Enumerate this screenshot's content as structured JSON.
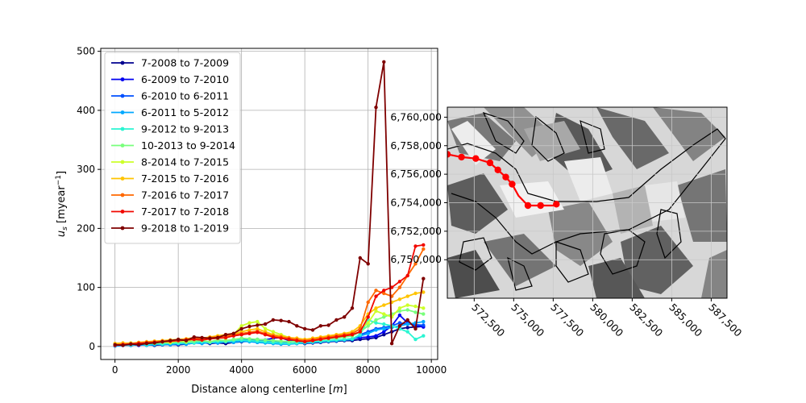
{
  "chart_data": [
    {
      "type": "line",
      "title": "",
      "xlabel": "Distance along centerline",
      "xlabel_unit": "m",
      "ylabel_symbol": "u",
      "ylabel_subscript": "s",
      "ylabel_unit": "myear",
      "ylabel_exp": "−1",
      "xlim": [
        -450,
        10200
      ],
      "ylim": [
        -22,
        505
      ],
      "xticks": [
        "0",
        "2000",
        "4000",
        "6000",
        "8000",
        "10000"
      ],
      "xtick_values": [
        0,
        2000,
        4000,
        6000,
        8000,
        10000
      ],
      "yticks": [
        "0",
        "100",
        "200",
        "300",
        "400",
        "500"
      ],
      "ytick_values": [
        0,
        100,
        200,
        300,
        400,
        500
      ],
      "grid": true,
      "legend_position": "upper-left",
      "series": [
        {
          "name": "7-2008 to 7-2009",
          "color": "#00008f",
          "x": [
            0,
            250,
            500,
            750,
            1000,
            1250,
            1500,
            1750,
            2000,
            2250,
            2500,
            2750,
            3000,
            3250,
            3500,
            3750,
            4000,
            4250,
            4500,
            4750,
            5000,
            5250,
            5500,
            5750,
            6000,
            6250,
            6500,
            6750,
            7000,
            7250,
            7500,
            7750,
            8000,
            8250,
            8500,
            8750,
            9000,
            9250,
            9500,
            9750
          ],
          "y": [
            2,
            3,
            2,
            3,
            3,
            2,
            3,
            4,
            3,
            4,
            6,
            7,
            5,
            6,
            5,
            7,
            8,
            9,
            7,
            8,
            7,
            6,
            5,
            6,
            5,
            6,
            7,
            8,
            9,
            10,
            10,
            12,
            13,
            15,
            20,
            25,
            30,
            32,
            33,
            34
          ]
        },
        {
          "name": "6-2009 to 7-2010",
          "color": "#0000f0",
          "x": [
            0,
            250,
            500,
            750,
            1000,
            1250,
            1500,
            1750,
            2000,
            2250,
            2500,
            2750,
            3000,
            3250,
            3500,
            3750,
            4000,
            4250,
            4500,
            4750,
            5000,
            5250,
            5500,
            5750,
            6000,
            6250,
            6500,
            6750,
            7000,
            7250,
            7500,
            7750,
            8000,
            8250,
            8500,
            8750,
            9000,
            9250,
            9500,
            9750
          ],
          "y": [
            1,
            2,
            3,
            2,
            3,
            3,
            4,
            3,
            4,
            5,
            8,
            6,
            7,
            6,
            8,
            9,
            11,
            10,
            12,
            11,
            14,
            15,
            10,
            8,
            6,
            7,
            8,
            9,
            10,
            12,
            13,
            15,
            16,
            18,
            25,
            35,
            53,
            40,
            36,
            33
          ]
        },
        {
          "name": "6-2010 to 6-2011",
          "color": "#0050ff",
          "x": [
            0,
            250,
            500,
            750,
            1000,
            1250,
            1500,
            1750,
            2000,
            2250,
            2500,
            2750,
            3000,
            3250,
            3500,
            3750,
            4000,
            4250,
            4500,
            4750,
            5000,
            5250,
            5500,
            5750,
            6000,
            6250,
            6500,
            6750,
            7000,
            7250,
            7500,
            7750,
            8000,
            8250,
            8500,
            8750,
            9000,
            9250,
            9500,
            9750
          ],
          "y": [
            2,
            3,
            2,
            4,
            3,
            4,
            3,
            5,
            4,
            6,
            7,
            8,
            6,
            9,
            8,
            10,
            12,
            11,
            10,
            9,
            8,
            7,
            6,
            5,
            6,
            7,
            8,
            9,
            10,
            11,
            12,
            20,
            25,
            30,
            32,
            35,
            40,
            38,
            37,
            36
          ]
        },
        {
          "name": "6-2011 to 5-2012",
          "color": "#00a8ff",
          "x": [
            0,
            250,
            500,
            750,
            1000,
            1250,
            1500,
            1750,
            2000,
            2250,
            2500,
            2750,
            3000,
            3250,
            3500,
            3750,
            4000,
            4250,
            4500,
            4750,
            5000,
            5250,
            5500,
            5750,
            6000,
            6250,
            6500,
            6750,
            7000,
            7250,
            7500,
            7750,
            8000,
            8250,
            8500,
            8750,
            9000,
            9250,
            9500,
            9750
          ],
          "y": [
            1,
            2,
            2,
            3,
            2,
            3,
            4,
            3,
            5,
            4,
            6,
            5,
            7,
            6,
            8,
            7,
            9,
            8,
            7,
            6,
            5,
            4,
            4,
            5,
            6,
            7,
            8,
            9,
            10,
            11,
            12,
            18,
            22,
            28,
            30,
            32,
            35,
            38,
            40,
            42
          ]
        },
        {
          "name": "9-2012 to 9-2013",
          "color": "#2af5d2",
          "x": [
            0,
            250,
            500,
            750,
            1000,
            1250,
            1500,
            1750,
            2000,
            2250,
            2500,
            2750,
            3000,
            3250,
            3500,
            3750,
            4000,
            4250,
            4500,
            4750,
            5000,
            5250,
            5500,
            5750,
            6000,
            6250,
            6500,
            6750,
            7000,
            7250,
            7500,
            7750,
            8000,
            8250,
            8500,
            8750,
            9000,
            9250,
            9500,
            9750
          ],
          "y": [
            2,
            3,
            3,
            4,
            3,
            5,
            4,
            6,
            5,
            7,
            6,
            8,
            7,
            9,
            8,
            10,
            11,
            10,
            9,
            8,
            7,
            6,
            5,
            6,
            7,
            8,
            9,
            10,
            11,
            12,
            13,
            20,
            45,
            40,
            38,
            35,
            30,
            25,
            12,
            18
          ]
        },
        {
          "name": "10-2013 to 9-2014",
          "color": "#79ff7c",
          "x": [
            0,
            250,
            500,
            750,
            1000,
            1250,
            1500,
            1750,
            2000,
            2250,
            2500,
            2750,
            3000,
            3250,
            3500,
            3750,
            4000,
            4250,
            4500,
            4750,
            5000,
            5250,
            5500,
            5750,
            6000,
            6250,
            6500,
            6750,
            7000,
            7250,
            7500,
            7750,
            8000,
            8250,
            8500,
            8750,
            9000,
            9250,
            9500,
            9750
          ],
          "y": [
            3,
            4,
            5,
            4,
            6,
            5,
            7,
            6,
            8,
            7,
            9,
            10,
            8,
            11,
            10,
            12,
            14,
            13,
            12,
            11,
            10,
            9,
            8,
            9,
            10,
            11,
            12,
            13,
            14,
            16,
            18,
            25,
            35,
            45,
            50,
            55,
            60,
            62,
            58,
            55
          ]
        },
        {
          "name": "8-2014 to 7-2015",
          "color": "#cdff29",
          "x": [
            0,
            250,
            500,
            750,
            1000,
            1250,
            1500,
            1750,
            2000,
            2250,
            2500,
            2750,
            3000,
            3250,
            3500,
            3750,
            4000,
            4250,
            4500,
            4750,
            5000,
            5250,
            5500,
            5750,
            6000,
            6250,
            6500,
            6750,
            7000,
            7250,
            7500,
            7750,
            8000,
            8250,
            8500,
            8750,
            9000,
            9250,
            9500,
            9750
          ],
          "y": [
            4,
            5,
            6,
            5,
            7,
            6,
            8,
            7,
            10,
            9,
            12,
            11,
            13,
            15,
            14,
            20,
            35,
            40,
            42,
            30,
            25,
            20,
            15,
            12,
            10,
            12,
            14,
            16,
            18,
            20,
            22,
            30,
            40,
            60,
            55,
            50,
            65,
            70,
            68,
            65
          ]
        },
        {
          "name": "7-2015 to 7-2016",
          "color": "#ffc400",
          "x": [
            0,
            250,
            500,
            750,
            1000,
            1250,
            1500,
            1750,
            2000,
            2250,
            2500,
            2750,
            3000,
            3250,
            3500,
            3750,
            4000,
            4250,
            4500,
            4750,
            5000,
            5250,
            5500,
            5750,
            6000,
            6250,
            6500,
            6750,
            7000,
            7250,
            7500,
            7750,
            8000,
            8250,
            8500,
            8750,
            9000,
            9250,
            9500,
            9750
          ],
          "y": [
            5,
            6,
            5,
            7,
            8,
            9,
            10,
            11,
            12,
            13,
            15,
            14,
            16,
            18,
            20,
            22,
            25,
            28,
            30,
            25,
            20,
            18,
            15,
            14,
            12,
            14,
            16,
            18,
            20,
            22,
            25,
            35,
            55,
            65,
            70,
            75,
            80,
            85,
            90,
            92
          ]
        },
        {
          "name": "7-2016 to 7-2017",
          "color": "#ff6800",
          "x": [
            0,
            250,
            500,
            750,
            1000,
            1250,
            1500,
            1750,
            2000,
            2250,
            2500,
            2750,
            3000,
            3250,
            3500,
            3750,
            4000,
            4250,
            4500,
            4750,
            5000,
            5250,
            5500,
            5750,
            6000,
            6250,
            6500,
            6750,
            7000,
            7250,
            7500,
            7750,
            8000,
            8250,
            8500,
            8750,
            9000,
            9250,
            9500,
            9750
          ],
          "y": [
            3,
            4,
            5,
            6,
            7,
            8,
            9,
            10,
            11,
            12,
            14,
            13,
            15,
            16,
            18,
            20,
            22,
            24,
            26,
            22,
            18,
            16,
            14,
            12,
            10,
            12,
            14,
            16,
            18,
            20,
            22,
            30,
            75,
            95,
            90,
            85,
            100,
            120,
            140,
            165
          ]
        },
        {
          "name": "7-2017 to 7-2018",
          "color": "#f10800",
          "x": [
            0,
            250,
            500,
            750,
            1000,
            1250,
            1500,
            1750,
            2000,
            2250,
            2500,
            2750,
            3000,
            3250,
            3500,
            3750,
            4000,
            4250,
            4500,
            4750,
            5000,
            5250,
            5500,
            5750,
            6000,
            6250,
            6500,
            6750,
            7000,
            7250,
            7500,
            7750,
            8000,
            8250,
            8500,
            8750,
            9000,
            9250,
            9500,
            9750
          ],
          "y": [
            2,
            3,
            4,
            5,
            6,
            7,
            8,
            9,
            10,
            11,
            12,
            11,
            13,
            14,
            15,
            18,
            20,
            22,
            24,
            20,
            16,
            14,
            12,
            10,
            8,
            10,
            12,
            14,
            16,
            18,
            20,
            25,
            50,
            85,
            95,
            100,
            110,
            120,
            170,
            172
          ]
        },
        {
          "name": "9-2018 to 1-2019",
          "color": "#7f0000",
          "x": [
            0,
            250,
            500,
            750,
            1000,
            1250,
            1500,
            1750,
            2000,
            2250,
            2500,
            2750,
            3000,
            3250,
            3500,
            3750,
            4000,
            4250,
            4500,
            4750,
            5000,
            5250,
            5500,
            5750,
            6000,
            6250,
            6500,
            6750,
            7000,
            7250,
            7500,
            7750,
            8000,
            8250,
            8500,
            8750,
            9000,
            9250,
            9500,
            9750
          ],
          "y": [
            3,
            2,
            4,
            3,
            5,
            6,
            8,
            10,
            12,
            10,
            16,
            15,
            14,
            15,
            20,
            22,
            30,
            34,
            36,
            38,
            45,
            44,
            42,
            35,
            30,
            28,
            35,
            36,
            45,
            50,
            65,
            150,
            140,
            405,
            482,
            5,
            35,
            45,
            30,
            115
          ]
        }
      ]
    },
    {
      "type": "map",
      "title": "",
      "xlim": [
        570800,
        588500
      ],
      "ylim": [
        6747300,
        6760700
      ],
      "xticks": [
        "572,500",
        "575,000",
        "577,500",
        "580,000",
        "582,500",
        "585,000",
        "587,500"
      ],
      "xtick_values": [
        572500,
        575000,
        577500,
        580000,
        582500,
        585000,
        587500
      ],
      "yticks": [
        "6,750,000",
        "6,752,000",
        "6,754,000",
        "6,756,000",
        "6,758,000",
        "6,760,000"
      ],
      "ytick_values": [
        6750000,
        6752000,
        6754000,
        6756000,
        6758000,
        6760000
      ],
      "grid": true,
      "centerline_color": "#ff0000",
      "centerline": {
        "x": [
          570800,
          571700,
          572600,
          573500,
          574000,
          574500,
          574900,
          575300,
          575900,
          576700,
          577500,
          577700
        ],
        "y": [
          6757400,
          6757200,
          6757100,
          6756800,
          6756300,
          6755800,
          6755300,
          6754500,
          6753800,
          6753800,
          6753800,
          6753900
        ]
      },
      "centerline_markers_x": [
        570800,
        571700,
        572600,
        573500,
        574000,
        574500,
        574900,
        575900,
        576700,
        577700
      ],
      "centerline_markers_y": [
        6757400,
        6757200,
        6757100,
        6756800,
        6756300,
        6755800,
        6755300,
        6753800,
        6753800,
        6753900
      ]
    }
  ]
}
